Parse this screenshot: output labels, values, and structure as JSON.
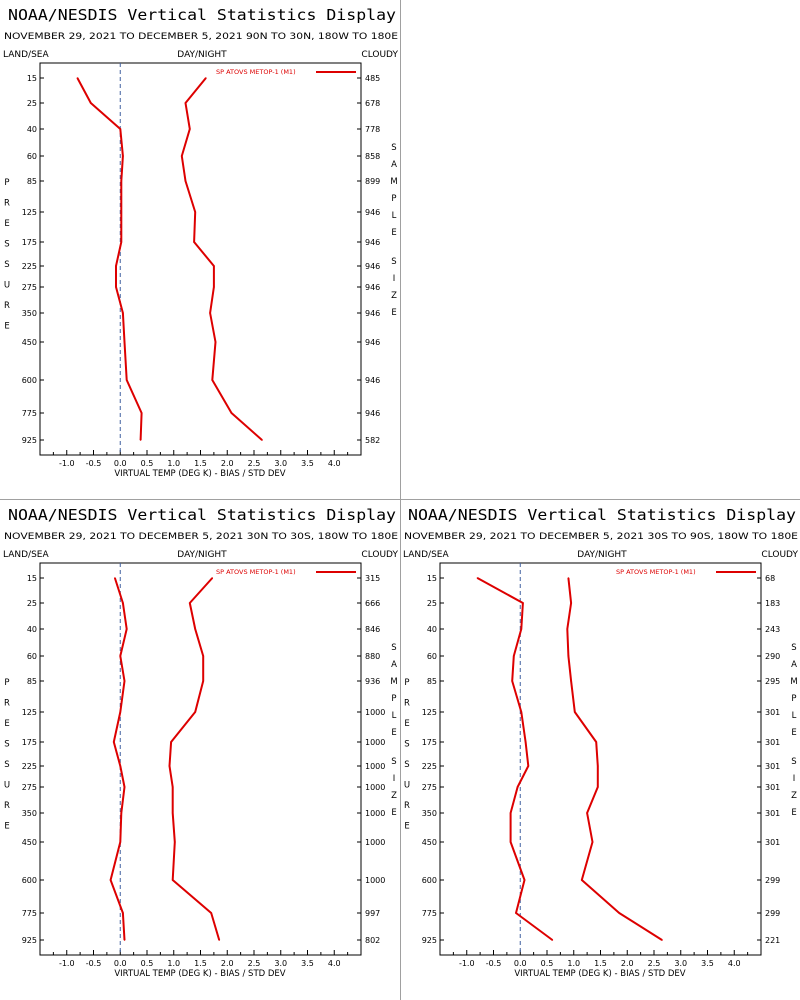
{
  "common": {
    "title": "NOAA/NESDIS Vertical Statistics Display",
    "date_range": "NOVEMBER 29, 2021 TO DECEMBER 5, 2021",
    "label_land_sea": "LAND/SEA",
    "label_day_night": "DAY/NIGHT",
    "label_cloudy": "CLOUDY",
    "xlabel": "VIRTUAL TEMP (DEG K) - BIAS / STD DEV",
    "ylabel_left": "PRESSURE",
    "ylabel_right": "SAMPLE SIZE",
    "legend_entry": "SP ATOVS METOP-1 (M1)",
    "line_color": "#dd0000"
  },
  "panels": [
    {
      "region": "90N TO 30N, 180W TO 180E",
      "empty": false
    },
    {
      "region": "",
      "empty": true
    },
    {
      "region": "30N TO 30S, 180W TO 180E",
      "empty": false
    },
    {
      "region": "30S TO 90S, 180W TO 180E",
      "empty": false
    }
  ],
  "chart_data": [
    {
      "type": "line",
      "title": "NOAA/NESDIS Vertical Statistics Display",
      "subtitle": "NOVEMBER 29, 2021 TO DECEMBER 5, 2021 90N TO 30N, 180W TO 180E",
      "xlabel": "VIRTUAL TEMP (DEG K) - BIAS / STD DEV",
      "ylabel": "PRESSURE",
      "y_right_label": "SAMPLE SIZE",
      "xlim": [
        -1.5,
        4.5
      ],
      "x_ticks": [
        "-1.0",
        "-0.5",
        "0.0",
        "0.5",
        "1.0",
        "1.5",
        "2.0",
        "2.5",
        "3.0",
        "3.5",
        "4.0"
      ],
      "y_axis_reversed": true,
      "pressure_levels": [
        "15",
        "25",
        "40",
        "60",
        "85",
        "125",
        "175",
        "225",
        "275",
        "350",
        "450",
        "600",
        "775",
        "925"
      ],
      "sample_size": [
        "485",
        "678",
        "778",
        "858",
        "899",
        "946",
        "946",
        "946",
        "946",
        "946",
        "946",
        "946",
        "946",
        "582"
      ],
      "series": [
        {
          "name": "SP ATOVS METOP-1 (M1)",
          "values": [
            -0.8,
            -0.55,
            0.0,
            0.05,
            0.02,
            0.02,
            0.02,
            -0.08,
            -0.08,
            0.05,
            0.08,
            0.12,
            0.4,
            0.38
          ]
        },
        {
          "name": "SP ATOVS METOP-1 (M1)",
          "values": [
            1.6,
            1.22,
            1.3,
            1.15,
            1.22,
            1.4,
            1.38,
            1.75,
            1.75,
            1.68,
            1.78,
            1.72,
            2.08,
            2.65
          ]
        }
      ],
      "legend": "top-right",
      "zero_line": "dashed"
    },
    {
      "type": "line",
      "title": "NOAA/NESDIS Vertical Statistics Display",
      "subtitle": "NOVEMBER 29, 2021 TO DECEMBER 5, 2021 30N TO 30S, 180W TO 180E",
      "xlabel": "VIRTUAL TEMP (DEG K) - BIAS / STD DEV",
      "ylabel": "PRESSURE",
      "y_right_label": "SAMPLE SIZE",
      "xlim": [
        -1.5,
        4.5
      ],
      "x_ticks": [
        "-1.0",
        "-0.5",
        "0.0",
        "0.5",
        "1.0",
        "1.5",
        "2.0",
        "2.5",
        "3.0",
        "3.5",
        "4.0"
      ],
      "y_axis_reversed": true,
      "pressure_levels": [
        "15",
        "25",
        "40",
        "60",
        "85",
        "125",
        "175",
        "225",
        "275",
        "350",
        "450",
        "600",
        "775",
        "925"
      ],
      "sample_size": [
        "315",
        "666",
        "846",
        "880",
        "936",
        "1000",
        "1000",
        "1000",
        "1000",
        "1000",
        "1000",
        "1000",
        "997",
        "802"
      ],
      "series": [
        {
          "name": "SP ATOVS METOP-1 (M1)",
          "values": [
            -0.1,
            0.05,
            0.12,
            0.0,
            0.08,
            0.0,
            -0.12,
            0.0,
            0.08,
            0.02,
            0.0,
            -0.18,
            0.05,
            0.08
          ]
        },
        {
          "name": "SP ATOVS METOP-1 (M1)",
          "values": [
            1.72,
            1.3,
            1.4,
            1.55,
            1.55,
            1.4,
            0.95,
            0.92,
            0.98,
            0.98,
            1.02,
            0.98,
            1.7,
            1.85
          ]
        }
      ],
      "legend": "top-right",
      "zero_line": "dashed"
    },
    {
      "type": "line",
      "title": "NOAA/NESDIS Vertical Statistics Display",
      "subtitle": "NOVEMBER 29, 2021 TO DECEMBER 5, 2021 30S TO 90S, 180W TO 180E",
      "xlabel": "VIRTUAL TEMP (DEG K) - BIAS / STD DEV",
      "ylabel": "PRESSURE",
      "y_right_label": "SAMPLE SIZE",
      "xlim": [
        -1.5,
        4.5
      ],
      "x_ticks": [
        "-1.0",
        "-0.5",
        "0.0",
        "0.5",
        "1.0",
        "1.5",
        "2.0",
        "2.5",
        "3.0",
        "3.5",
        "4.0"
      ],
      "y_axis_reversed": true,
      "pressure_levels": [
        "15",
        "25",
        "40",
        "60",
        "85",
        "125",
        "175",
        "225",
        "275",
        "350",
        "450",
        "600",
        "775",
        "925"
      ],
      "sample_size": [
        "68",
        "183",
        "243",
        "290",
        "295",
        "301",
        "301",
        "301",
        "301",
        "301",
        "301",
        "299",
        "299",
        "221"
      ],
      "series": [
        {
          "name": "SP ATOVS METOP-1 (M1)",
          "values": [
            -0.8,
            0.05,
            0.02,
            -0.12,
            -0.15,
            0.02,
            0.1,
            0.15,
            -0.05,
            -0.18,
            -0.18,
            0.08,
            -0.08,
            0.6
          ]
        },
        {
          "name": "SP ATOVS METOP-1 (M1)",
          "values": [
            0.9,
            0.95,
            0.88,
            0.9,
            0.95,
            1.02,
            1.42,
            1.45,
            1.45,
            1.25,
            1.35,
            1.15,
            1.85,
            2.65
          ]
        }
      ],
      "legend": "top-right",
      "zero_line": "dashed"
    }
  ]
}
